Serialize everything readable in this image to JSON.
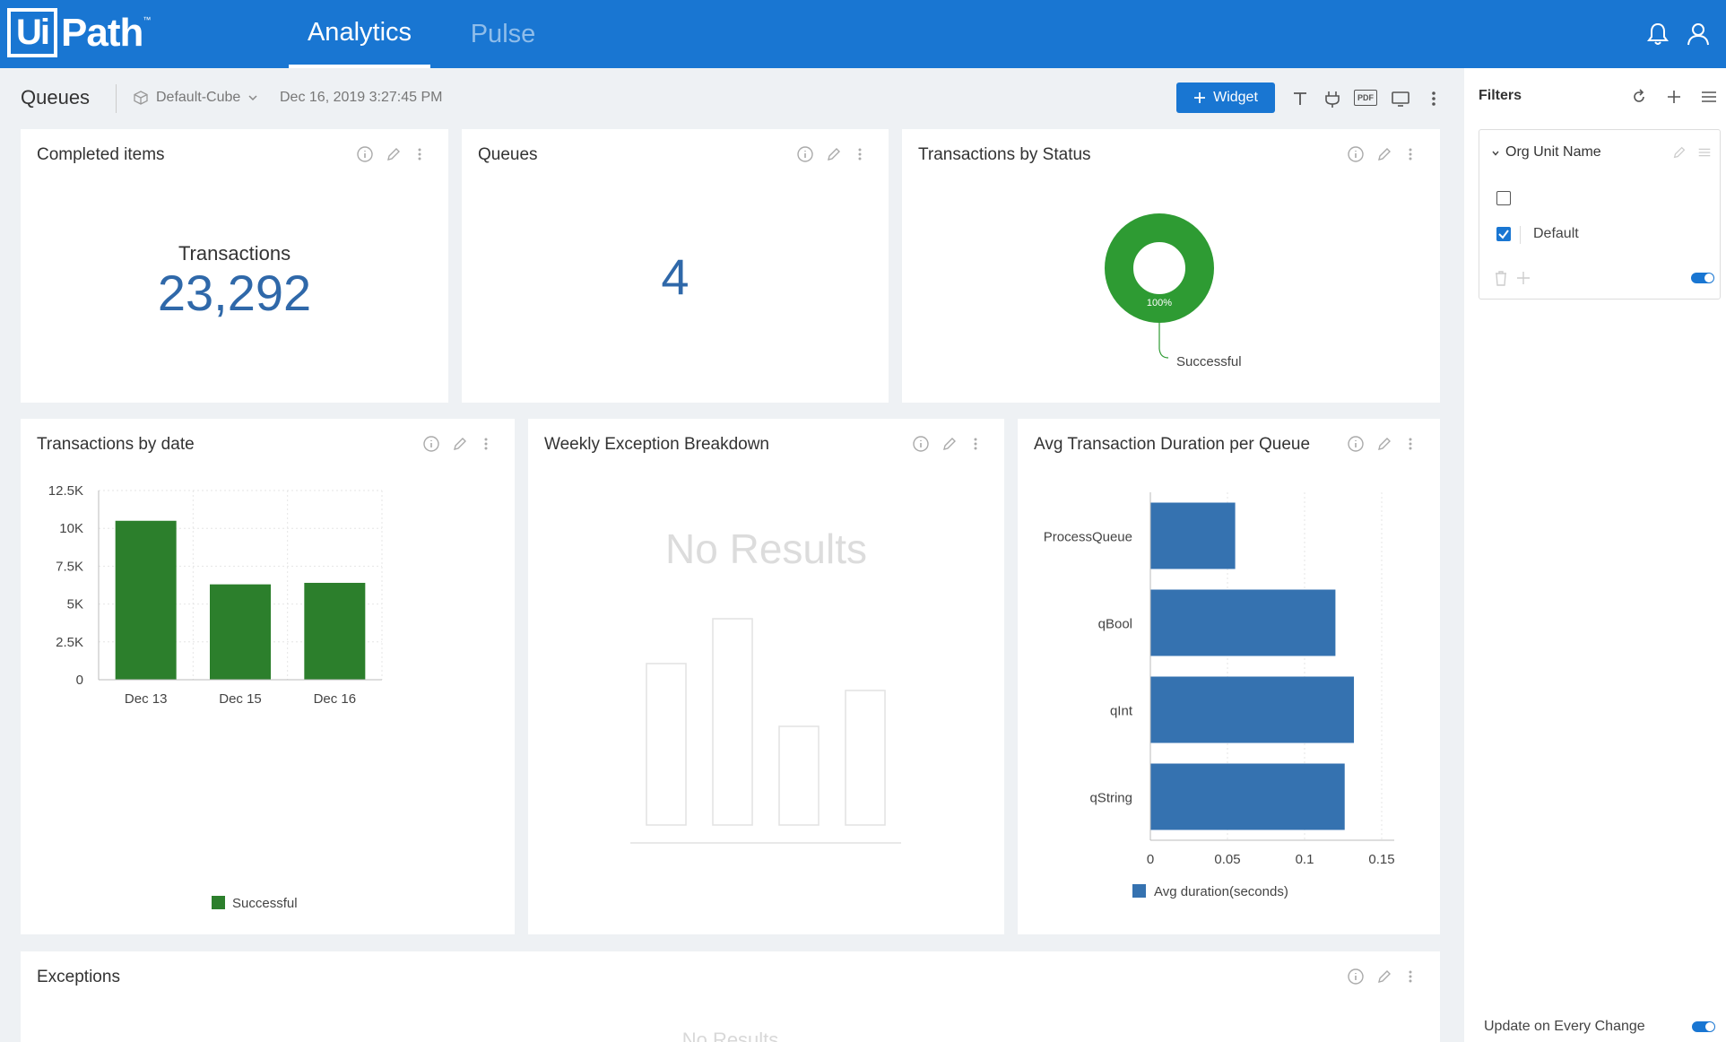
{
  "header": {
    "logo_box": "Ui",
    "logo_text": "Path",
    "logo_tm": "™",
    "tabs": [
      {
        "label": "Analytics",
        "active": true
      },
      {
        "label": "Pulse",
        "active": false
      }
    ]
  },
  "subheader": {
    "title": "Queues",
    "cube": "Default-Cube",
    "datetime": "Dec 16, 2019 3:27:45 PM",
    "widget_label": "Widget",
    "pdf_label": "PDF"
  },
  "cards": {
    "completed": {
      "title": "Completed items",
      "label": "Transactions",
      "value": "23,292"
    },
    "queues": {
      "title": "Queues",
      "value": "4"
    },
    "status": {
      "title": "Transactions by Status",
      "slice_label": "100%",
      "legend": "Successful"
    },
    "by_date": {
      "title": "Transactions by date"
    },
    "weekly": {
      "title": "Weekly Exception Breakdown",
      "empty": "No Results"
    },
    "avg": {
      "title": "Avg Transaction Duration per Queue"
    },
    "exceptions": {
      "title": "Exceptions",
      "empty": "No Results"
    }
  },
  "chart_data": [
    {
      "type": "pie",
      "slices": [
        {
          "label": "Successful",
          "value": 100
        }
      ],
      "color": "#2e9b33"
    },
    {
      "type": "bar",
      "categories": [
        "Dec 13",
        "Dec 15",
        "Dec 16"
      ],
      "series": [
        {
          "name": "Successful",
          "values": [
            10500,
            6300,
            6400
          ],
          "color": "#2c7f2c"
        }
      ],
      "ylim": [
        0,
        12500
      ],
      "yticks": [
        "0",
        "2.5K",
        "5K",
        "7.5K",
        "10K",
        "12.5K"
      ],
      "grid": true,
      "legend": "bottom"
    },
    {
      "type": "bar",
      "orientation": "horizontal",
      "categories": [
        "ProcessQueue",
        "qBool",
        "qInt",
        "qString"
      ],
      "series": [
        {
          "name": "Avg duration(seconds)",
          "values": [
            0.055,
            0.12,
            0.132,
            0.126
          ],
          "color": "#3572b0"
        }
      ],
      "xlim": [
        0,
        0.15
      ],
      "xticks": [
        "0",
        "0.05",
        "0.1",
        "0.15"
      ],
      "grid": true,
      "legend": "bottom"
    }
  ],
  "filters": {
    "title": "Filters",
    "group": "Org Unit Name",
    "options": [
      {
        "label": "",
        "checked": false
      },
      {
        "label": "Default",
        "checked": true
      }
    ],
    "update_label": "Update on Every Change"
  }
}
